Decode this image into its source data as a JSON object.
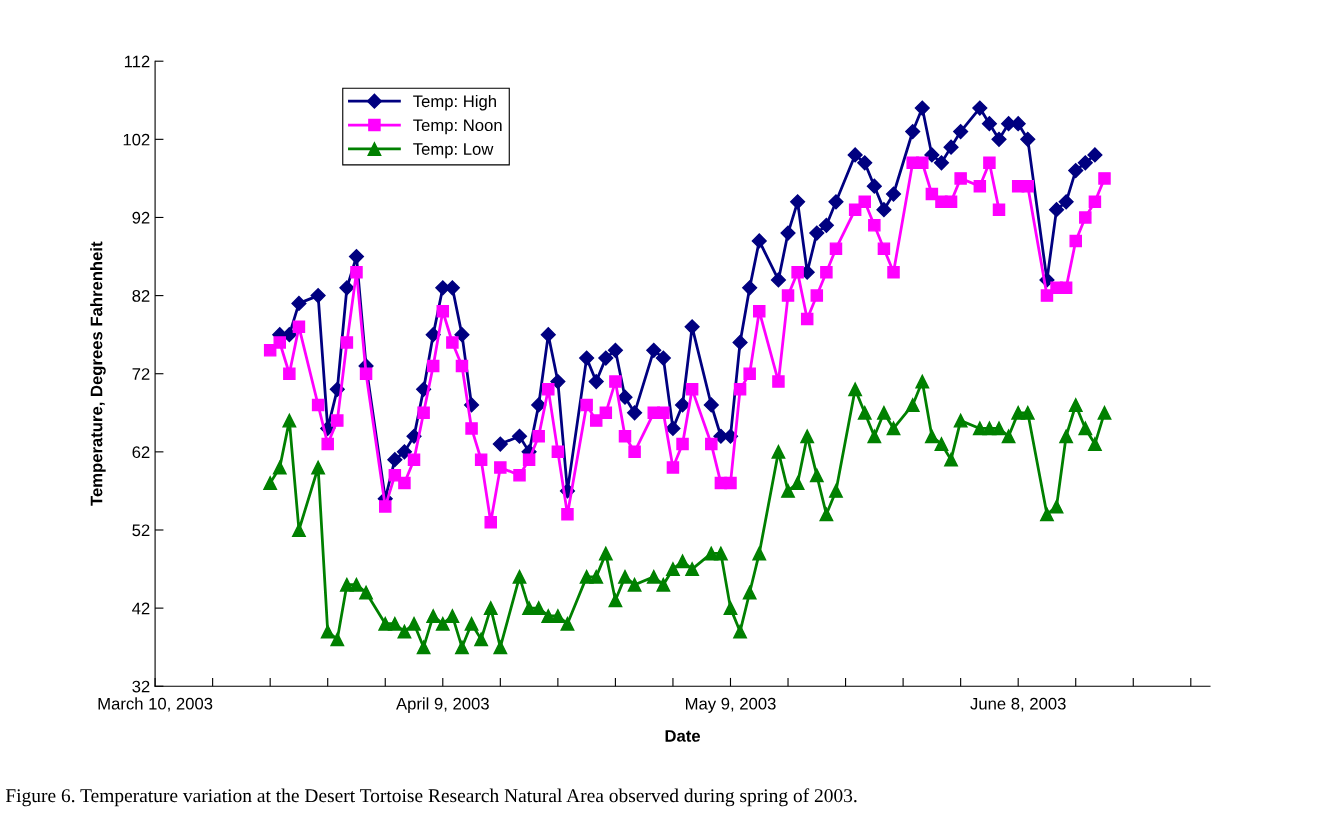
{
  "chart_data": {
    "type": "line",
    "xlabel": "Date",
    "ylabel": "Temperature, Degrees Fahrenheit",
    "annotations": [
      "Figure 6. Temperature variation at the Desert Tortoise Research Natural Area observed during spring of 2003."
    ],
    "x": [
      "2003-03-22",
      "2003-03-23",
      "2003-03-24",
      "2003-03-25",
      "2003-03-27",
      "2003-03-28",
      "2003-03-29",
      "2003-03-30",
      "2003-03-31",
      "2003-04-01",
      "2003-04-03",
      "2003-04-04",
      "2003-04-05",
      "2003-04-06",
      "2003-04-07",
      "2003-04-08",
      "2003-04-09",
      "2003-04-10",
      "2003-04-11",
      "2003-04-12",
      "2003-04-13",
      "2003-04-14",
      "2003-04-15",
      "2003-04-17",
      "2003-04-18",
      "2003-04-19",
      "2003-04-20",
      "2003-04-21",
      "2003-04-22",
      "2003-04-24",
      "2003-04-25",
      "2003-04-26",
      "2003-04-27",
      "2003-04-28",
      "2003-04-29",
      "2003-05-01",
      "2003-05-02",
      "2003-05-03",
      "2003-05-04",
      "2003-05-05",
      "2003-05-07",
      "2003-05-08",
      "2003-05-09",
      "2003-05-10",
      "2003-05-11",
      "2003-05-12",
      "2003-05-14",
      "2003-05-15",
      "2003-05-16",
      "2003-05-17",
      "2003-05-18",
      "2003-05-19",
      "2003-05-20",
      "2003-05-22",
      "2003-05-23",
      "2003-05-24",
      "2003-05-25",
      "2003-05-26",
      "2003-05-28",
      "2003-05-29",
      "2003-05-30",
      "2003-05-31",
      "2003-06-01",
      "2003-06-02",
      "2003-06-04",
      "2003-06-05",
      "2003-06-06",
      "2003-06-07",
      "2003-06-08",
      "2003-06-09",
      "2003-06-11",
      "2003-06-12",
      "2003-06-13",
      "2003-06-14",
      "2003-06-15",
      "2003-06-16",
      "2003-06-17"
    ],
    "series": [
      {
        "name": "Temp: High",
        "color": "#000080",
        "marker": "diamond",
        "values": [
          null,
          77,
          77,
          81,
          82,
          65,
          70,
          83,
          87,
          73,
          56,
          61,
          62,
          64,
          70,
          77,
          83,
          83,
          77,
          68,
          null,
          null,
          63,
          64,
          62,
          68,
          77,
          71,
          57,
          74,
          71,
          74,
          75,
          69,
          67,
          75,
          74,
          65,
          68,
          78,
          68,
          64,
          64,
          76,
          83,
          89,
          84,
          90,
          94,
          85,
          90,
          91,
          94,
          100,
          99,
          96,
          93,
          95,
          103,
          106,
          100,
          99,
          101,
          103,
          106,
          104,
          102,
          104,
          104,
          102,
          84,
          93,
          94,
          98,
          99,
          100,
          null
        ]
      },
      {
        "name": "Temp: Noon",
        "color": "#ff00ff",
        "marker": "square",
        "values": [
          75,
          76,
          72,
          78,
          68,
          63,
          66,
          76,
          85,
          72,
          55,
          59,
          58,
          61,
          67,
          73,
          80,
          76,
          73,
          65,
          61,
          53,
          60,
          59,
          61,
          64,
          70,
          62,
          54,
          68,
          66,
          67,
          71,
          64,
          62,
          67,
          67,
          60,
          63,
          70,
          63,
          58,
          58,
          70,
          72,
          80,
          71,
          82,
          85,
          79,
          82,
          85,
          88,
          93,
          94,
          91,
          88,
          85,
          99,
          99,
          95,
          94,
          94,
          97,
          96,
          99,
          93,
          null,
          96,
          96,
          82,
          83,
          83,
          89,
          92,
          94,
          97
        ]
      },
      {
        "name": "Temp: Low",
        "color": "#008000",
        "marker": "triangle",
        "values": [
          58,
          60,
          66,
          52,
          60,
          39,
          38,
          45,
          45,
          44,
          40,
          40,
          39,
          40,
          37,
          41,
          40,
          41,
          37,
          40,
          38,
          42,
          37,
          46,
          42,
          42,
          41,
          41,
          40,
          46,
          46,
          49,
          43,
          46,
          45,
          46,
          45,
          47,
          48,
          47,
          49,
          49,
          42,
          39,
          44,
          49,
          62,
          57,
          58,
          64,
          59,
          54,
          57,
          70,
          67,
          64,
          67,
          65,
          68,
          71,
          64,
          63,
          61,
          66,
          65,
          65,
          65,
          64,
          67,
          67,
          54,
          55,
          64,
          68,
          65,
          63,
          67
        ]
      }
    ],
    "xlim": [
      "2003-03-10",
      "2003-06-28"
    ],
    "xticks": [
      {
        "value": "2003-03-10",
        "label": "March 10, 2003"
      },
      {
        "value": "2003-03-16",
        "label": null
      },
      {
        "value": "2003-03-22",
        "label": null
      },
      {
        "value": "2003-03-28",
        "label": null
      },
      {
        "value": "2003-04-03",
        "label": null
      },
      {
        "value": "2003-04-09",
        "label": "April 9, 2003"
      },
      {
        "value": "2003-04-15",
        "label": null
      },
      {
        "value": "2003-04-21",
        "label": null
      },
      {
        "value": "2003-04-27",
        "label": null
      },
      {
        "value": "2003-05-03",
        "label": null
      },
      {
        "value": "2003-05-09",
        "label": "May 9, 2003"
      },
      {
        "value": "2003-05-15",
        "label": null
      },
      {
        "value": "2003-05-21",
        "label": null
      },
      {
        "value": "2003-05-27",
        "label": null
      },
      {
        "value": "2003-06-02",
        "label": null
      },
      {
        "value": "2003-06-08",
        "label": "June 8, 2003"
      },
      {
        "value": "2003-06-14",
        "label": null
      },
      {
        "value": "2003-06-20",
        "label": null
      },
      {
        "value": "2003-06-26",
        "label": null
      }
    ],
    "ylim": [
      32,
      112
    ],
    "yticks": [
      32,
      42,
      52,
      62,
      72,
      82,
      92,
      102,
      112
    ],
    "grid": false,
    "legend": "top left",
    "line_style": "solid"
  }
}
